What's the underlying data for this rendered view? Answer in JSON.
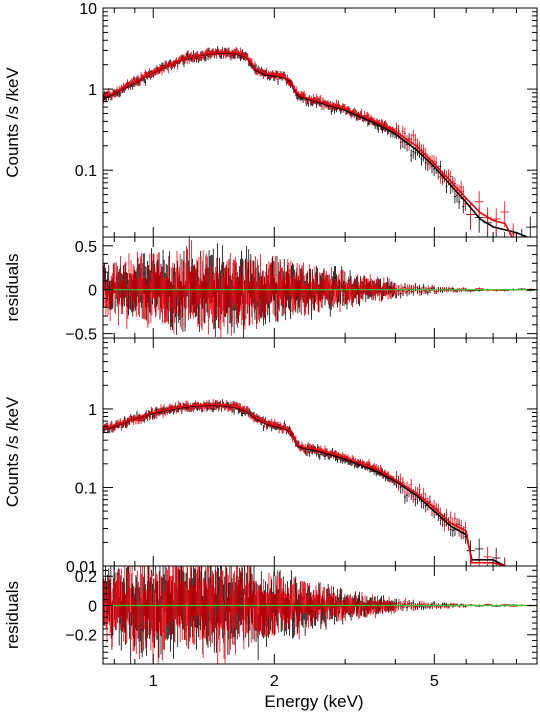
{
  "chart_data": {
    "type": "scatter",
    "xlabel": "Energy (keV)",
    "x_scale": "log",
    "xlim": [
      0.75,
      9.0
    ],
    "x_ticks": [
      1,
      2,
      5
    ],
    "x_tick_labels": [
      "1",
      "2",
      "5"
    ],
    "colors": {
      "data_black": "#000000",
      "data_red": "#e8000b",
      "zero_line": "#33cc33"
    },
    "panels": [
      {
        "ylabel": "Counts /s /keV",
        "y_scale": "log",
        "ylim": [
          0.015,
          10
        ],
        "y_ticks": [
          0.1,
          1,
          10
        ],
        "y_tick_labels": [
          "0.1",
          "1",
          "10"
        ],
        "series": [
          {
            "color": "#000000",
            "x": [
              0.75,
              0.8,
              0.9,
              1.0,
              1.1,
              1.2,
              1.3,
              1.4,
              1.5,
              1.6,
              1.7,
              1.8,
              1.9,
              2.0,
              2.1,
              2.2,
              2.25,
              2.3,
              2.4,
              2.5,
              2.7,
              3.0,
              3.3,
              3.6,
              4.0,
              4.5,
              5.0,
              5.5,
              6.0,
              6.5,
              7.0,
              8.0,
              8.5
            ],
            "y": [
              0.75,
              0.88,
              1.2,
              1.6,
              2.0,
              2.35,
              2.6,
              2.75,
              2.8,
              2.75,
              2.5,
              1.7,
              1.5,
              1.45,
              1.4,
              1.25,
              0.95,
              0.82,
              0.76,
              0.72,
              0.64,
              0.55,
              0.45,
              0.37,
              0.28,
              0.18,
              0.11,
              0.065,
              0.04,
              0.025,
              0.02,
              0.017,
              0.015
            ]
          },
          {
            "color": "#e8000b",
            "x": [
              0.75,
              0.8,
              0.9,
              1.0,
              1.1,
              1.2,
              1.3,
              1.4,
              1.5,
              1.6,
              1.7,
              1.8,
              1.9,
              2.0,
              2.1,
              2.2,
              2.25,
              2.3,
              2.4,
              2.5,
              2.7,
              3.0,
              3.3,
              3.6,
              4.0,
              4.5,
              5.0,
              5.5,
              6.0,
              6.5,
              7.0,
              7.5,
              7.8
            ],
            "y": [
              0.78,
              0.9,
              1.22,
              1.62,
              2.02,
              2.38,
              2.62,
              2.78,
              2.85,
              2.8,
              2.55,
              1.75,
              1.55,
              1.5,
              1.42,
              1.28,
              0.98,
              0.85,
              0.78,
              0.74,
              0.66,
              0.57,
              0.47,
              0.39,
              0.3,
              0.2,
              0.12,
              0.072,
              0.045,
              0.03,
              0.024,
              0.022,
              0.015
            ]
          }
        ]
      },
      {
        "ylabel": "residuals",
        "y_scale": "linear",
        "ylim": [
          -0.55,
          0.6
        ],
        "y_ticks": [
          -0.5,
          0,
          0.5
        ],
        "y_tick_labels": [
          "−0.5",
          "0",
          "0.5"
        ],
        "residual_envelope": {
          "x": [
            0.75,
            1.0,
            1.5,
            2.0,
            3.0,
            4.0,
            5.0,
            6.0,
            9.0
          ],
          "amplitude": [
            0.15,
            0.25,
            0.28,
            0.22,
            0.12,
            0.06,
            0.03,
            0.015,
            0.01
          ]
        }
      },
      {
        "ylabel": "Counts /s /keV",
        "y_scale": "log",
        "ylim": [
          0.01,
          8
        ],
        "y_ticks": [
          0.01,
          0.1,
          1
        ],
        "y_tick_labels": [
          "0.01",
          "0.1",
          "1"
        ],
        "series": [
          {
            "color": "#000000",
            "x": [
              0.75,
              0.8,
              0.9,
              1.0,
              1.1,
              1.2,
              1.3,
              1.4,
              1.5,
              1.6,
              1.7,
              1.8,
              1.9,
              2.0,
              2.1,
              2.2,
              2.25,
              2.3,
              2.4,
              2.5,
              2.7,
              3.0,
              3.3,
              3.6,
              4.0,
              4.5,
              5.0,
              5.5,
              6.0,
              6.2,
              6.5,
              7.0,
              7.5
            ],
            "y": [
              0.55,
              0.6,
              0.75,
              0.88,
              0.98,
              1.06,
              1.1,
              1.12,
              1.1,
              1.05,
              0.95,
              0.75,
              0.65,
              0.6,
              0.57,
              0.52,
              0.4,
              0.33,
              0.31,
              0.3,
              0.27,
              0.23,
              0.19,
              0.16,
              0.12,
              0.08,
              0.05,
              0.032,
              0.025,
              0.012,
              0.012,
              0.012,
              0.01
            ]
          },
          {
            "color": "#e8000b",
            "x": [
              0.75,
              0.8,
              0.9,
              1.0,
              1.1,
              1.2,
              1.3,
              1.4,
              1.5,
              1.6,
              1.7,
              1.8,
              1.9,
              2.0,
              2.1,
              2.2,
              2.25,
              2.3,
              2.4,
              2.5,
              2.7,
              3.0,
              3.3,
              3.6,
              4.0,
              4.5,
              5.0,
              5.5,
              6.0,
              6.2,
              6.5,
              7.0,
              7.5
            ],
            "y": [
              0.56,
              0.61,
              0.76,
              0.9,
              1.0,
              1.08,
              1.12,
              1.14,
              1.12,
              1.07,
              0.97,
              0.77,
              0.67,
              0.62,
              0.58,
              0.53,
              0.41,
              0.34,
              0.32,
              0.31,
              0.28,
              0.24,
              0.2,
              0.17,
              0.125,
              0.085,
              0.055,
              0.035,
              0.028,
              0.011,
              0.011,
              0.011,
              0.01
            ]
          }
        ]
      },
      {
        "ylabel": "residuals",
        "y_scale": "linear",
        "ylim": [
          -0.4,
          0.27
        ],
        "y_ticks": [
          -0.2,
          0,
          0.2
        ],
        "y_tick_labels": [
          "−0.2",
          "0",
          "0.2"
        ],
        "residual_envelope": {
          "x": [
            0.75,
            1.0,
            1.5,
            2.0,
            3.0,
            4.0,
            5.0,
            6.0,
            9.0
          ],
          "amplitude": [
            0.15,
            0.2,
            0.2,
            0.14,
            0.06,
            0.03,
            0.015,
            0.008,
            0.005
          ]
        }
      }
    ]
  }
}
